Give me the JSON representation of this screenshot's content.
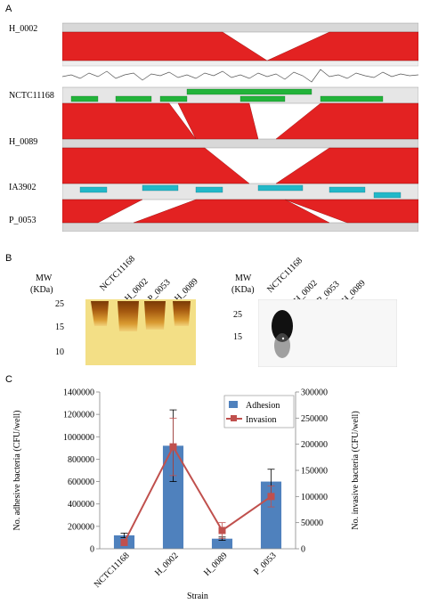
{
  "panels": {
    "a": "A",
    "b": "B",
    "c": "C"
  },
  "panelA": {
    "strains": [
      "H_0002",
      "NCTC11168",
      "H_0089",
      "IA3902",
      "P_0053"
    ],
    "colors": {
      "synteny": "#e32222",
      "track": "#d8d8d8",
      "gene_green": "#22b33a",
      "gene_cyan": "#22b8c8"
    }
  },
  "panelB": {
    "mw_label": "MW",
    "unit_label": "(KDa)",
    "left_ticks": [
      "25",
      "15",
      "10"
    ],
    "right_ticks": [
      "25",
      "15"
    ],
    "lanes": [
      "NCTC11168",
      "H_0002",
      "P_0053",
      "H_0089"
    ]
  },
  "chart_data": {
    "type": "bar",
    "categories": [
      "NCTC11168",
      "H_0002",
      "H_0089",
      "P_0053"
    ],
    "series": [
      {
        "name": "Adhesion",
        "values": [
          120000,
          920000,
          90000,
          600000
        ],
        "errors": [
          20000,
          320000,
          15000,
          110000
        ],
        "axis": "left",
        "color": "#4f81bd",
        "kind": "bar"
      },
      {
        "name": "Invasion",
        "values": [
          12000,
          195000,
          35000,
          100000
        ],
        "errors": [
          5000,
          55000,
          15000,
          20000
        ],
        "axis": "right",
        "color": "#c0504d",
        "kind": "line"
      }
    ],
    "ylabel": "No. adhesive bacteria (CFU/well)",
    "y2label": "No. invasive bacteria (CFU/well)",
    "xlabel": "Strain",
    "ylim": [
      0,
      1400000
    ],
    "y2lim": [
      0,
      300000
    ],
    "yticks": [
      "1400000",
      "1200000",
      "1000000",
      "800000",
      "600000",
      "400000",
      "200000",
      "0"
    ],
    "y2ticks": [
      "300000",
      "250000",
      "200000",
      "150000",
      "100000",
      "50000",
      "0"
    ],
    "legend": "top-right"
  }
}
